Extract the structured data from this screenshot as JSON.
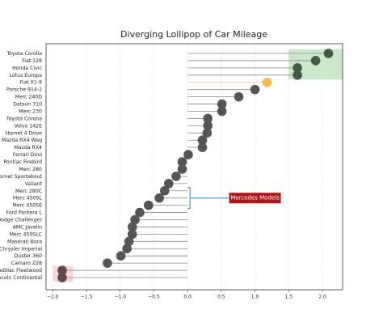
{
  "chart_data": {
    "type": "lollipop",
    "title": "Diverging Lollipop of Car Mileage",
    "categories": [
      "Toyota Corolla",
      "Fiat 128",
      "Honda Civic",
      "Lotus Europa",
      "Fiat X1-9",
      "Porsche 914-2",
      "Merc 240D",
      "Datsun 710",
      "Merc 230",
      "Toyota Corona",
      "Volvo 142E",
      "Hornet 4 Drive",
      "Mazda RX4 Wag",
      "Mazda RX4",
      "Ferrari Dino",
      "Pontiac Firebird",
      "Merc 280",
      "Hornet Sportabout",
      "Valiant",
      "Merc 280C",
      "Merc 450SL",
      "Merc 450SE",
      "Ford Pantera L",
      "Dodge Challenger",
      "AMC Javelin",
      "Merc 450SLC",
      "Maserati Bora",
      "Chrysler Imperial",
      "Duster 360",
      "Camaro Z28",
      "Cadillac Fleetwood",
      "Lincoln Continental"
    ],
    "series": [
      {
        "values": [
          2.09,
          1.9,
          1.63,
          1.63,
          1.18,
          1.0,
          0.76,
          0.51,
          0.51,
          0.3,
          0.3,
          0.29,
          0.22,
          0.22,
          0.01,
          -0.08,
          -0.08,
          -0.17,
          -0.28,
          -0.34,
          -0.42,
          -0.58,
          -0.71,
          -0.78,
          -0.82,
          -0.82,
          -0.87,
          -0.9,
          -0.99,
          -1.19,
          -1.86,
          -1.86
        ],
        "color": "#555555",
        "point_colors": [
          "#3f5e3f",
          "#3f5e3f",
          "#3f5e3f",
          "#3f5e3f",
          "#f7b84b",
          "#555555",
          "#555555",
          "#555555",
          "#555555",
          "#555555",
          "#555555",
          "#555555",
          "#555555",
          "#555555",
          "#555555",
          "#555555",
          "#555555",
          "#555555",
          "#555555",
          "#555555",
          "#555555",
          "#555555",
          "#555555",
          "#555555",
          "#555555",
          "#555555",
          "#555555",
          "#555555",
          "#555555",
          "#555555",
          "#604848",
          "#604848"
        ],
        "stem_colors": [
          "#888888",
          "#888888",
          "#888888",
          "#888888",
          "#f7b84b",
          "#888888",
          "#888888",
          "#888888",
          "#888888",
          "#888888",
          "#888888",
          "#888888",
          "#888888",
          "#888888",
          "#888888",
          "#888888",
          "#888888",
          "#888888",
          "#888888",
          "#888888",
          "#888888",
          "#888888",
          "#888888",
          "#888888",
          "#888888",
          "#888888",
          "#888888",
          "#888888",
          "#888888",
          "#888888",
          "#888888",
          "#888888"
        ]
      }
    ],
    "xlim": [
      -2.1,
      2.3
    ],
    "xticks": [
      {
        "value": -2.0,
        "label": "−2.0"
      },
      {
        "value": -1.5,
        "label": "−1.5"
      },
      {
        "value": -1.0,
        "label": "−1.0"
      },
      {
        "value": -0.5,
        "label": "−0.5"
      },
      {
        "value": 0.0,
        "label": "0.0"
      },
      0.5,
      {
        "value": 1.0,
        "label": "1.0"
      },
      1.5,
      {
        "value": 2.0,
        "label": "2.0"
      }
    ],
    "grid": true,
    "regions": [
      {
        "x": [
          1.5,
          2.3
        ],
        "rows": [
          0,
          3
        ],
        "color": "#8fcc8f"
      },
      {
        "x": [
          -2.0,
          -1.7
        ],
        "rows": [
          30,
          31
        ],
        "color": "#f4a3a3"
      }
    ],
    "annotation": {
      "text": "Mercedes Models",
      "rows": [
        19,
        21
      ],
      "x_bracket": 0.0,
      "x_text": 1.0,
      "color": "#b01818",
      "line_color": "#3a7ab0"
    }
  }
}
